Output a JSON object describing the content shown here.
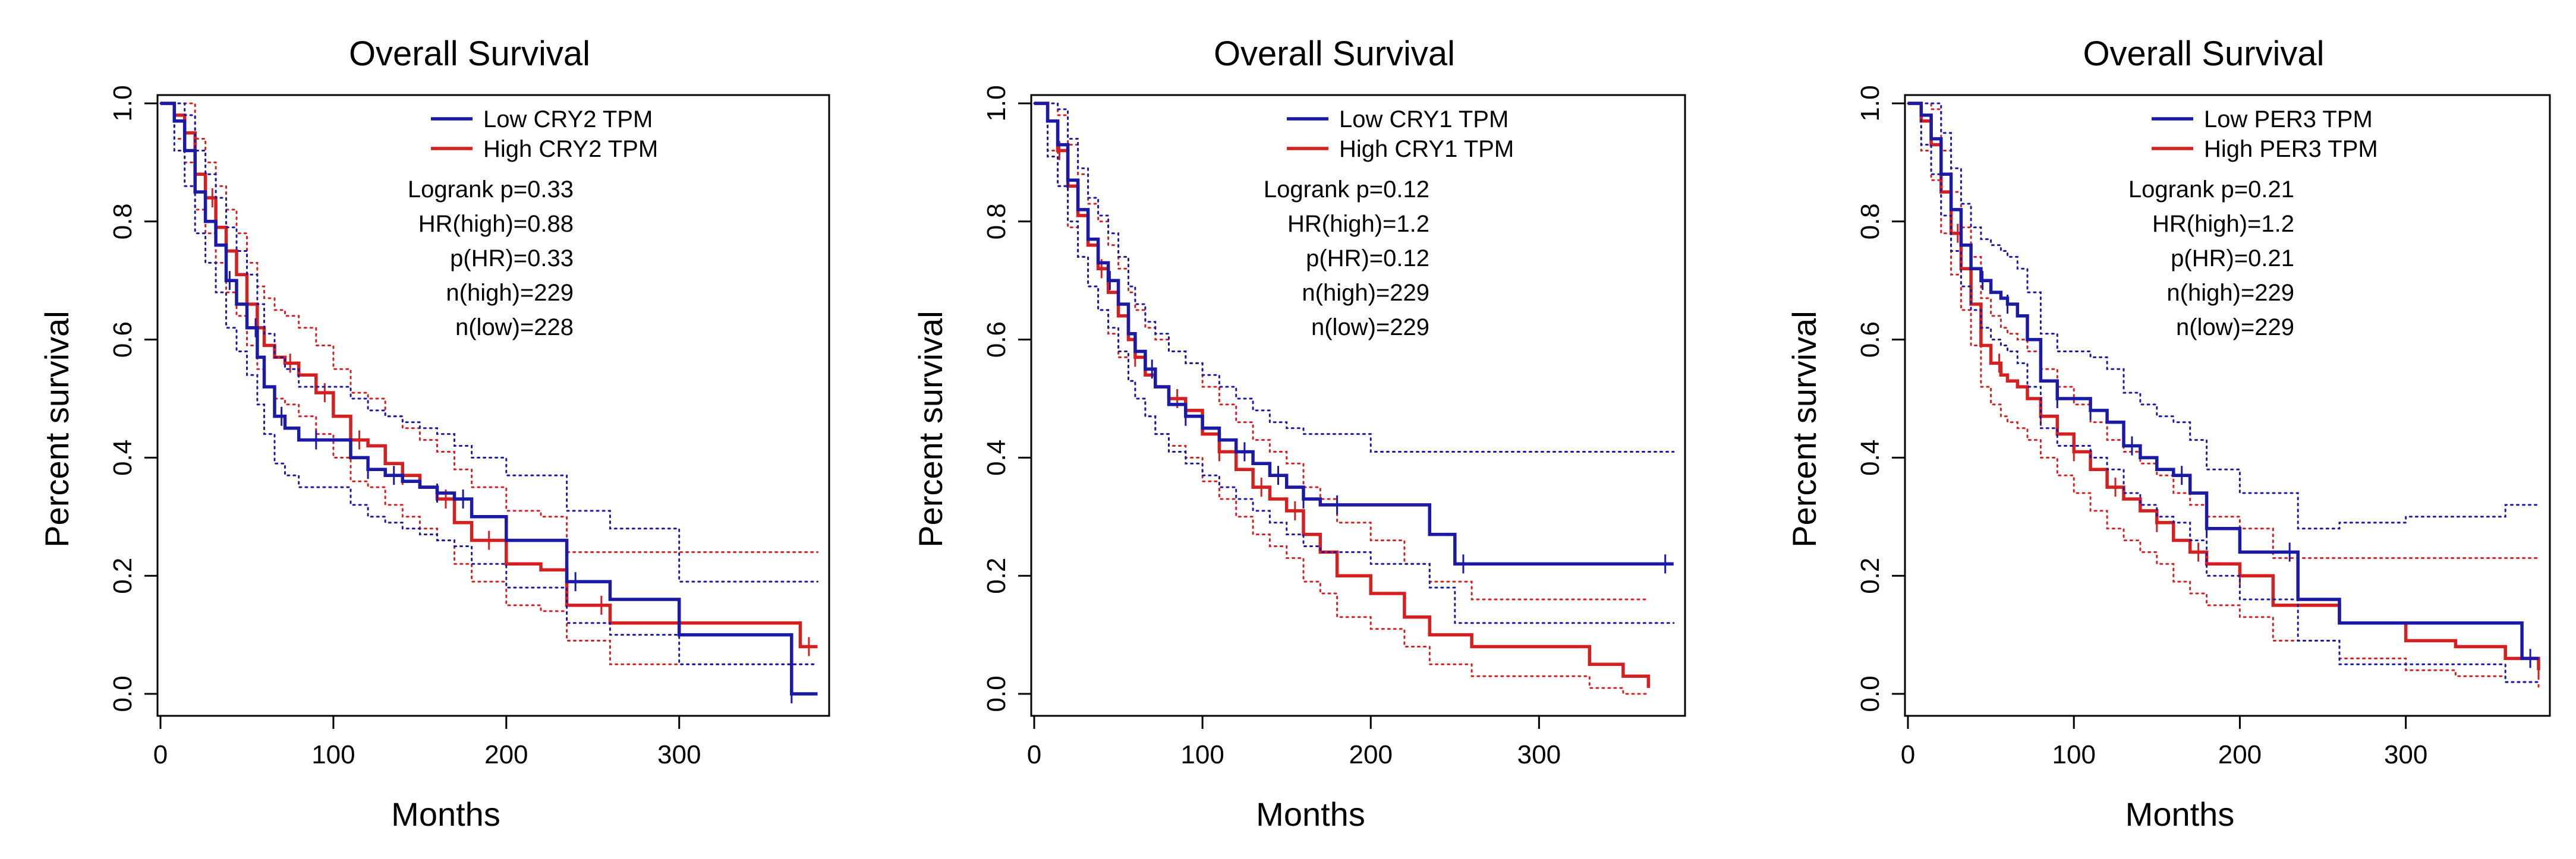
{
  "colors": {
    "low": "#1a1aa6",
    "high": "#d42020",
    "axis": "#000000"
  },
  "chart_data": [
    {
      "type": "line",
      "title": "Overall Survival",
      "xlabel": "Months",
      "ylabel": "Percent survival",
      "xlim": [
        0,
        385
      ],
      "ylim": [
        0,
        1
      ],
      "xticks": [
        "0",
        "100",
        "200",
        "300"
      ],
      "yticks": [
        "0.0",
        "0.2",
        "0.4",
        "0.6",
        "0.8",
        "1.0"
      ],
      "legend": [
        "Low CRY2 TPM",
        "High CRY2 TPM"
      ],
      "stats": [
        "Logrank p=0.33",
        "HR(high)=0.88",
        "p(HR)=0.33",
        "n(high)=229",
        "n(low)=228"
      ],
      "series": [
        {
          "name": "Low CRY2 TPM",
          "key": "low",
          "x": [
            0,
            8,
            14,
            20,
            26,
            32,
            38,
            44,
            50,
            56,
            60,
            66,
            72,
            80,
            90,
            100,
            110,
            120,
            130,
            140,
            150,
            160,
            170,
            180,
            200,
            220,
            235,
            260,
            300,
            330,
            360,
            365,
            380
          ],
          "y": [
            1.0,
            0.97,
            0.92,
            0.85,
            0.8,
            0.76,
            0.7,
            0.66,
            0.62,
            0.57,
            0.52,
            0.47,
            0.45,
            0.43,
            0.43,
            0.43,
            0.4,
            0.38,
            0.37,
            0.36,
            0.35,
            0.34,
            0.33,
            0.3,
            0.26,
            0.26,
            0.19,
            0.16,
            0.1,
            0.1,
            0.1,
            0.0,
            0.0
          ],
          "ci_upper": [
            1.0,
            1.0,
            0.98,
            0.92,
            0.88,
            0.84,
            0.79,
            0.75,
            0.71,
            0.66,
            0.61,
            0.57,
            0.55,
            0.52,
            0.52,
            0.52,
            0.5,
            0.48,
            0.47,
            0.46,
            0.45,
            0.44,
            0.42,
            0.4,
            0.37,
            0.37,
            0.31,
            0.28,
            0.19,
            0.19,
            0.19,
            0.19,
            0.19
          ],
          "ci_lower": [
            1.0,
            0.92,
            0.86,
            0.78,
            0.73,
            0.68,
            0.62,
            0.58,
            0.54,
            0.49,
            0.44,
            0.39,
            0.37,
            0.35,
            0.35,
            0.35,
            0.32,
            0.3,
            0.29,
            0.28,
            0.27,
            0.26,
            0.25,
            0.22,
            0.18,
            0.18,
            0.12,
            0.1,
            0.05,
            0.05,
            0.05,
            0.05,
            0.05
          ],
          "censor_x": [
            40,
            55,
            70,
            90,
            120,
            135,
            160,
            175,
            240,
            365
          ]
        },
        {
          "name": "High CRY2 TPM",
          "key": "high",
          "x": [
            0,
            8,
            14,
            20,
            26,
            32,
            38,
            44,
            50,
            56,
            60,
            66,
            72,
            80,
            90,
            100,
            110,
            120,
            130,
            140,
            150,
            160,
            170,
            180,
            200,
            220,
            235,
            260,
            300,
            330,
            360,
            370,
            380
          ],
          "y": [
            1.0,
            0.98,
            0.95,
            0.88,
            0.84,
            0.79,
            0.75,
            0.71,
            0.66,
            0.62,
            0.59,
            0.57,
            0.56,
            0.54,
            0.51,
            0.47,
            0.43,
            0.42,
            0.39,
            0.37,
            0.35,
            0.33,
            0.29,
            0.26,
            0.22,
            0.21,
            0.15,
            0.12,
            0.12,
            0.12,
            0.12,
            0.08,
            0.08
          ],
          "ci_upper": [
            1.0,
            1.0,
            1.0,
            0.94,
            0.9,
            0.86,
            0.82,
            0.78,
            0.73,
            0.69,
            0.67,
            0.65,
            0.64,
            0.62,
            0.59,
            0.55,
            0.51,
            0.5,
            0.47,
            0.45,
            0.43,
            0.41,
            0.38,
            0.35,
            0.31,
            0.3,
            0.24,
            0.24,
            0.24,
            0.24,
            0.24,
            0.24,
            0.24
          ],
          "ci_lower": [
            1.0,
            0.94,
            0.9,
            0.82,
            0.78,
            0.73,
            0.68,
            0.64,
            0.59,
            0.55,
            0.52,
            0.5,
            0.49,
            0.47,
            0.44,
            0.4,
            0.36,
            0.35,
            0.32,
            0.3,
            0.28,
            0.26,
            0.22,
            0.19,
            0.15,
            0.14,
            0.09,
            0.05,
            0.05,
            0.05,
            0.05,
            0.05,
            0.05
          ],
          "censor_x": [
            30,
            50,
            75,
            95,
            115,
            140,
            165,
            190,
            255,
            375
          ]
        }
      ]
    },
    {
      "type": "line",
      "title": "Overall Survival",
      "xlabel": "Months",
      "ylabel": "Percent survival",
      "xlim": [
        0,
        385
      ],
      "ylim": [
        0,
        1
      ],
      "xticks": [
        "0",
        "100",
        "200",
        "300"
      ],
      "yticks": [
        "0.0",
        "0.2",
        "0.4",
        "0.6",
        "0.8",
        "1.0"
      ],
      "legend": [
        "Low CRY1 TPM",
        "High CRY1 TPM"
      ],
      "stats": [
        "Logrank p=0.12",
        "HR(high)=1.2",
        "p(HR)=0.12",
        "n(high)=229",
        "n(low)=229"
      ],
      "series": [
        {
          "name": "Low CRY1 TPM",
          "key": "low",
          "x": [
            0,
            8,
            14,
            20,
            26,
            32,
            38,
            44,
            50,
            56,
            60,
            66,
            72,
            80,
            90,
            100,
            110,
            120,
            130,
            140,
            150,
            160,
            170,
            180,
            200,
            220,
            235,
            250,
            300,
            330,
            360,
            380
          ],
          "y": [
            1.0,
            0.97,
            0.93,
            0.87,
            0.82,
            0.77,
            0.73,
            0.7,
            0.66,
            0.61,
            0.58,
            0.55,
            0.52,
            0.49,
            0.47,
            0.45,
            0.43,
            0.41,
            0.39,
            0.37,
            0.35,
            0.33,
            0.32,
            0.32,
            0.32,
            0.32,
            0.27,
            0.22,
            0.22,
            0.22,
            0.22,
            0.22
          ],
          "ci_upper": [
            1.0,
            1.0,
            0.99,
            0.94,
            0.89,
            0.84,
            0.81,
            0.78,
            0.74,
            0.69,
            0.66,
            0.63,
            0.61,
            0.58,
            0.56,
            0.54,
            0.52,
            0.5,
            0.48,
            0.46,
            0.45,
            0.44,
            0.44,
            0.44,
            0.41,
            0.41,
            0.41,
            0.41,
            0.41,
            0.41,
            0.41,
            0.41
          ],
          "ci_lower": [
            1.0,
            0.91,
            0.86,
            0.8,
            0.74,
            0.69,
            0.65,
            0.62,
            0.58,
            0.53,
            0.5,
            0.47,
            0.44,
            0.41,
            0.39,
            0.37,
            0.35,
            0.33,
            0.31,
            0.29,
            0.27,
            0.25,
            0.24,
            0.24,
            0.22,
            0.22,
            0.18,
            0.12,
            0.12,
            0.12,
            0.12,
            0.12
          ],
          "censor_x": [
            20,
            45,
            70,
            90,
            125,
            145,
            160,
            180,
            255,
            375
          ]
        },
        {
          "name": "High CRY1 TPM",
          "key": "high",
          "x": [
            0,
            8,
            14,
            20,
            26,
            32,
            38,
            44,
            50,
            56,
            60,
            66,
            72,
            80,
            90,
            100,
            110,
            120,
            130,
            140,
            150,
            160,
            170,
            180,
            200,
            220,
            235,
            260,
            300,
            330,
            350,
            365
          ],
          "y": [
            1.0,
            0.97,
            0.92,
            0.86,
            0.81,
            0.76,
            0.72,
            0.68,
            0.64,
            0.6,
            0.57,
            0.54,
            0.52,
            0.5,
            0.48,
            0.44,
            0.41,
            0.38,
            0.35,
            0.33,
            0.31,
            0.27,
            0.24,
            0.2,
            0.17,
            0.13,
            0.1,
            0.08,
            0.08,
            0.05,
            0.03,
            0.01
          ],
          "ci_upper": [
            1.0,
            1.0,
            0.98,
            0.93,
            0.88,
            0.83,
            0.8,
            0.76,
            0.72,
            0.68,
            0.65,
            0.62,
            0.6,
            0.58,
            0.56,
            0.52,
            0.49,
            0.46,
            0.43,
            0.41,
            0.39,
            0.35,
            0.33,
            0.29,
            0.26,
            0.22,
            0.19,
            0.16,
            0.16,
            0.16,
            0.16,
            0.16
          ],
          "ci_lower": [
            1.0,
            0.92,
            0.86,
            0.79,
            0.74,
            0.69,
            0.65,
            0.61,
            0.57,
            0.53,
            0.5,
            0.47,
            0.44,
            0.42,
            0.4,
            0.36,
            0.33,
            0.3,
            0.27,
            0.25,
            0.23,
            0.19,
            0.17,
            0.13,
            0.11,
            0.08,
            0.05,
            0.03,
            0.03,
            0.01,
            0.0,
            0.0
          ],
          "censor_x": [
            15,
            40,
            60,
            85,
            110,
            135,
            155
          ]
        }
      ]
    },
    {
      "type": "line",
      "title": "Overall Survival",
      "xlabel": "Months",
      "ylabel": "Percent survival",
      "xlim": [
        0,
        385
      ],
      "ylim": [
        0,
        1
      ],
      "xticks": [
        "0",
        "100",
        "200",
        "300"
      ],
      "yticks": [
        "0.0",
        "0.2",
        "0.4",
        "0.6",
        "0.8",
        "1.0"
      ],
      "legend": [
        "Low PER3 TPM",
        "High PER3 TPM"
      ],
      "stats": [
        "Logrank p=0.21",
        "HR(high)=1.2",
        "p(HR)=0.21",
        "n(high)=229",
        "n(low)=229"
      ],
      "series": [
        {
          "name": "Low PER3 TPM",
          "key": "low",
          "x": [
            0,
            8,
            14,
            20,
            26,
            32,
            38,
            44,
            50,
            56,
            60,
            66,
            72,
            80,
            90,
            100,
            110,
            120,
            130,
            140,
            150,
            160,
            170,
            180,
            200,
            220,
            235,
            260,
            300,
            330,
            360,
            370,
            380
          ],
          "y": [
            1.0,
            0.98,
            0.94,
            0.88,
            0.82,
            0.76,
            0.72,
            0.7,
            0.68,
            0.67,
            0.66,
            0.64,
            0.6,
            0.53,
            0.5,
            0.5,
            0.48,
            0.46,
            0.42,
            0.4,
            0.38,
            0.37,
            0.34,
            0.28,
            0.24,
            0.24,
            0.16,
            0.12,
            0.12,
            0.12,
            0.12,
            0.06,
            0.06
          ],
          "ci_upper": [
            1.0,
            1.0,
            1.0,
            0.95,
            0.89,
            0.83,
            0.79,
            0.77,
            0.76,
            0.75,
            0.74,
            0.72,
            0.68,
            0.61,
            0.58,
            0.58,
            0.57,
            0.55,
            0.51,
            0.49,
            0.47,
            0.46,
            0.43,
            0.38,
            0.34,
            0.34,
            0.28,
            0.29,
            0.3,
            0.3,
            0.32,
            0.32,
            0.32
          ],
          "ci_lower": [
            1.0,
            0.93,
            0.88,
            0.81,
            0.75,
            0.69,
            0.65,
            0.62,
            0.6,
            0.59,
            0.58,
            0.56,
            0.52,
            0.45,
            0.42,
            0.42,
            0.4,
            0.38,
            0.34,
            0.32,
            0.3,
            0.29,
            0.26,
            0.2,
            0.16,
            0.16,
            0.09,
            0.05,
            0.05,
            0.05,
            0.02,
            0.02,
            0.02
          ],
          "censor_x": [
            45,
            60,
            90,
            110,
            135,
            165,
            180,
            230,
            375
          ]
        },
        {
          "name": "High PER3 TPM",
          "key": "high",
          "x": [
            0,
            8,
            14,
            20,
            26,
            32,
            38,
            44,
            50,
            56,
            60,
            66,
            72,
            80,
            90,
            100,
            110,
            120,
            130,
            140,
            150,
            160,
            170,
            180,
            200,
            220,
            235,
            260,
            300,
            330,
            360,
            380
          ],
          "y": [
            1.0,
            0.97,
            0.93,
            0.85,
            0.78,
            0.72,
            0.66,
            0.59,
            0.56,
            0.54,
            0.53,
            0.52,
            0.5,
            0.47,
            0.44,
            0.41,
            0.38,
            0.35,
            0.33,
            0.31,
            0.29,
            0.26,
            0.24,
            0.22,
            0.2,
            0.15,
            0.15,
            0.12,
            0.09,
            0.08,
            0.06,
            0.04
          ],
          "ci_upper": [
            1.0,
            1.0,
            0.99,
            0.92,
            0.85,
            0.79,
            0.74,
            0.67,
            0.64,
            0.62,
            0.61,
            0.6,
            0.58,
            0.55,
            0.52,
            0.49,
            0.46,
            0.43,
            0.41,
            0.39,
            0.37,
            0.34,
            0.32,
            0.3,
            0.28,
            0.23,
            0.23,
            0.23,
            0.23,
            0.23,
            0.23,
            0.23
          ],
          "ci_lower": [
            1.0,
            0.92,
            0.87,
            0.78,
            0.71,
            0.65,
            0.59,
            0.52,
            0.49,
            0.47,
            0.46,
            0.45,
            0.43,
            0.4,
            0.37,
            0.34,
            0.31,
            0.28,
            0.26,
            0.24,
            0.22,
            0.19,
            0.17,
            0.15,
            0.13,
            0.09,
            0.09,
            0.06,
            0.04,
            0.03,
            0.02,
            0.01
          ],
          "censor_x": [
            30,
            55,
            80,
            100,
            125,
            150,
            175,
            200,
            380
          ]
        }
      ]
    }
  ]
}
